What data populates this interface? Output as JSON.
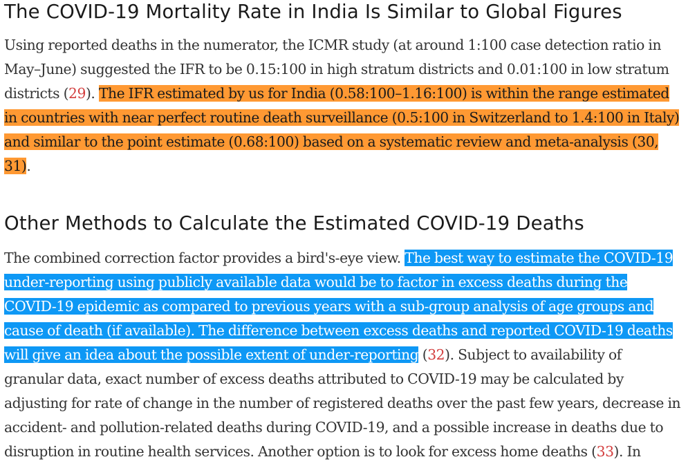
{
  "section1": {
    "heading": "The COVID-19 Mortality Rate in India Is Similar to Global Figures",
    "para": {
      "text_before": "Using reported deaths in the numerator, the ICMR study (at around 1:100 case detection ratio in May–June) suggested the IFR to be 0.15:100 in high stratum districts and 0.01:100 in low stratum districts (",
      "ref_a": "29",
      "text_mid": "). ",
      "highlight": "The IFR estimated by us for India (0.58:100–1.16:100) is within the range estimated in countries with near perfect routine death surveillance (0.5:100 in Switzerland to 1.4:100 in Italy) and similar to the point estimate (0.68:100) based on a systematic review and meta-analysis (30, 31)",
      "text_end": "."
    }
  },
  "section2": {
    "heading": "Other Methods to Calculate the Estimated COVID-19 Deaths",
    "para": {
      "text_before": "The combined correction factor provides a bird's-eye view. ",
      "highlight": "The best way to estimate the COVID-19 under-reporting using publicly available data would be to factor in excess deaths during the COVID-19 epidemic as compared to previous years with a sub-group analysis of age groups and cause of death (if available). The difference between excess deaths and reported COVID-19 deaths will give an idea about the possible extent of under-reporting",
      "text_mid1": " (",
      "ref_a": "32",
      "text_mid2": "). Subject to availability of granular data, exact number of excess deaths attributed to COVID-19 may be calculated by adjusting for rate of change in the number of registered deaths over the past few years, decrease in accident- and pollution-related deaths during COVID-19, and a possible increase in deaths due to disruption in routine health services. Another option is to look for excess home deaths (",
      "ref_b": "33",
      "text_end": "). In"
    }
  },
  "colors": {
    "highlight_orange": "#ff9933",
    "highlight_blue": "#0e98f5",
    "reference_link": "#d33d3d"
  }
}
